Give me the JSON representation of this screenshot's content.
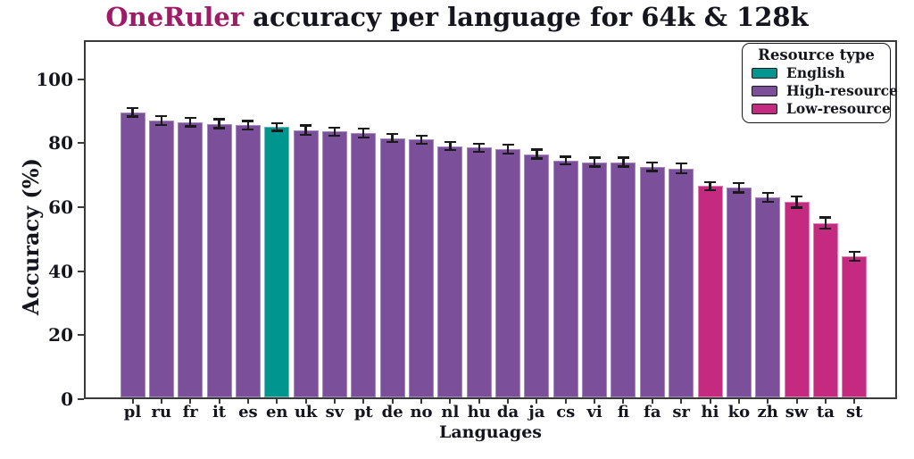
{
  "title": {
    "accent": "OneRuler",
    "rest": " accuracy per language for 64k & 128k"
  },
  "axes": {
    "x_label": "Languages",
    "y_label": "Accuracy (%)",
    "y_ticks": [
      0,
      20,
      40,
      60,
      80,
      100
    ]
  },
  "legend": {
    "title": "Resource type",
    "entries": [
      {
        "label": "English",
        "type": "english"
      },
      {
        "label": "High-resource",
        "type": "high"
      },
      {
        "label": "Low-resource",
        "type": "low"
      }
    ]
  },
  "colors": {
    "english": "#00958f",
    "high": "#7b4f9a",
    "low": "#c42a7f",
    "english_edge": "#6cbcb8",
    "high_edge": "#a488c0",
    "low_edge": "#dd84b4",
    "title_accent": "#9e1b67",
    "text": "#15151e",
    "spine": "#3a3a3a",
    "errorbar": "#1a1a1a"
  },
  "chart_data": {
    "type": "bar",
    "title": "OneRuler accuracy per language for 64k & 128k",
    "xlabel": "Languages",
    "ylabel": "Accuracy (%)",
    "ylim": [
      0,
      112
    ],
    "grid": false,
    "legend_position": "upper right",
    "legend_title": "Resource type",
    "categories": [
      "pl",
      "ru",
      "fr",
      "it",
      "es",
      "en",
      "uk",
      "sv",
      "pt",
      "de",
      "no",
      "nl",
      "hu",
      "da",
      "ja",
      "cs",
      "vi",
      "fi",
      "fa",
      "sr",
      "hi",
      "ko",
      "zh",
      "sw",
      "ta",
      "st"
    ],
    "values": [
      89,
      86.5,
      86,
      85.5,
      85,
      84.5,
      83.5,
      83,
      82.5,
      81,
      80.5,
      78.5,
      78,
      77.5,
      76,
      74,
      73.5,
      73.5,
      72,
      71.5,
      66,
      65.5,
      62.5,
      61,
      54.5,
      44
    ],
    "errors": [
      1.3,
      1.4,
      1.3,
      1.4,
      1.3,
      1.2,
      1.4,
      1.3,
      1.4,
      1.2,
      1.2,
      1.2,
      1.2,
      1.4,
      1.4,
      1.2,
      1.4,
      1.4,
      1.3,
      1.5,
      1.3,
      1.5,
      1.4,
      1.7,
      1.7,
      1.4
    ],
    "resource_type": [
      "high",
      "high",
      "high",
      "high",
      "high",
      "english",
      "high",
      "high",
      "high",
      "high",
      "high",
      "high",
      "high",
      "high",
      "high",
      "high",
      "high",
      "high",
      "high",
      "high",
      "low",
      "high",
      "high",
      "low",
      "low",
      "low"
    ],
    "series_note": "bar color encodes resource type: english=teal, high=purple, low=magenta"
  }
}
